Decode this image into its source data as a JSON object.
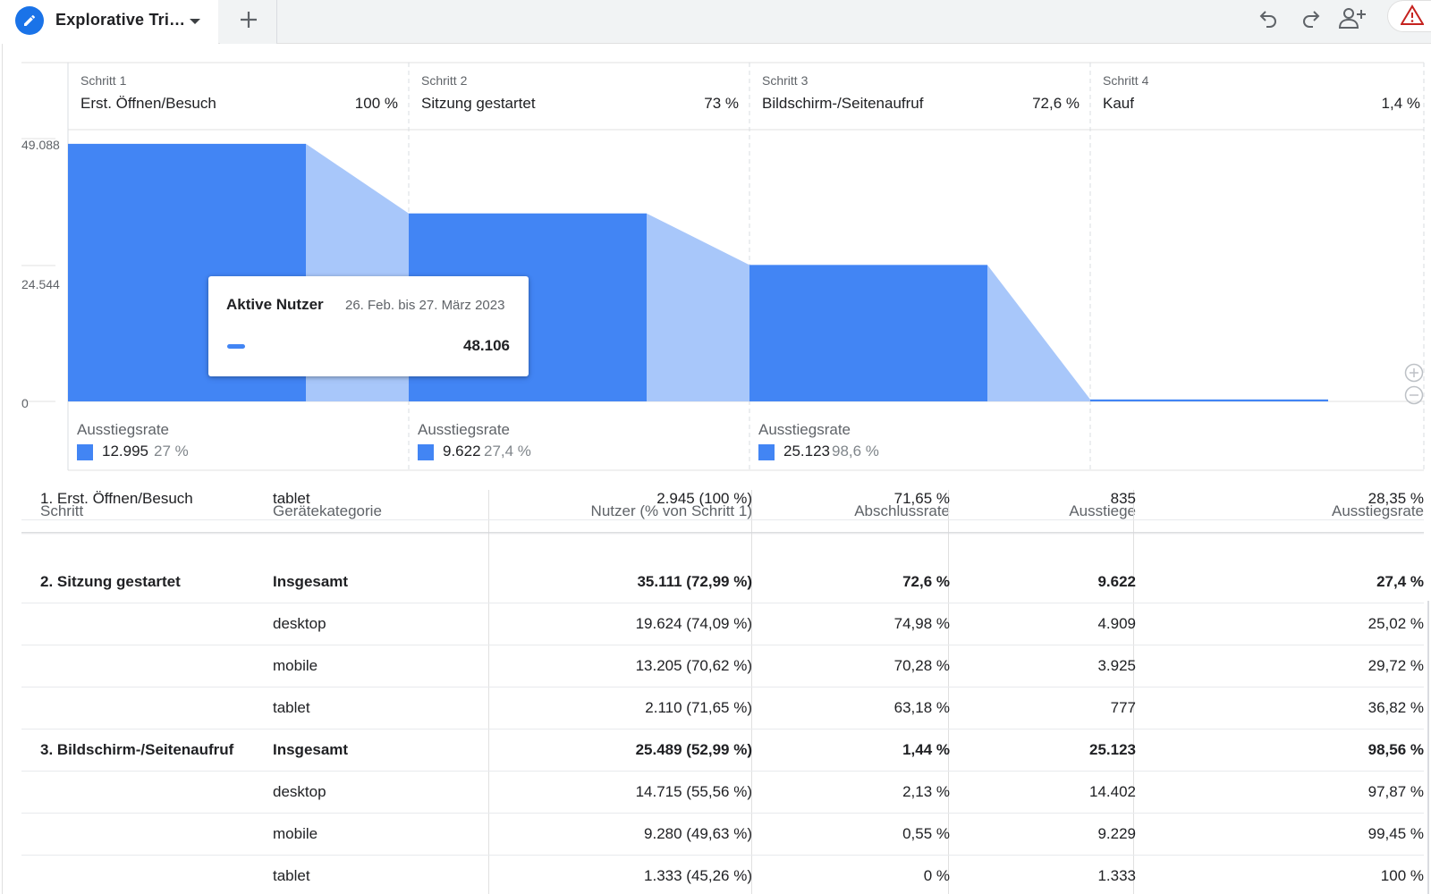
{
  "header": {
    "tab_title": "Explorative Tri…",
    "icons": [
      "edit-icon",
      "caret-down-icon",
      "plus-icon",
      "undo-icon",
      "redo-icon",
      "add-person-icon",
      "warning-icon"
    ]
  },
  "funnel": {
    "steps": [
      {
        "label": "Schritt 1",
        "name": "Erst. Öffnen/Besuch",
        "pct": "100 %",
        "users": 48106,
        "dropout_value": "12.995",
        "dropout_pct": "27 %"
      },
      {
        "label": "Schritt 2",
        "name": "Sitzung gestartet",
        "pct": "73 %",
        "users": 35111,
        "dropout_value": "9.622",
        "dropout_pct": "27,4 %"
      },
      {
        "label": "Schritt 3",
        "name": "Bildschirm-/Seitenaufruf",
        "pct": "72,6 %",
        "users": 25489,
        "dropout_value": "25.123",
        "dropout_pct": "98,6 %"
      },
      {
        "label": "Schritt 4",
        "name": "Kauf",
        "pct": "1,4 %",
        "users": 366
      }
    ],
    "y_ticks": [
      "49.088",
      "24.544",
      "0"
    ],
    "y_max": 49088,
    "dropout_label": "Ausstiegsrate",
    "colors": {
      "bar": "#4285f4",
      "flow": "#a8c7fa"
    }
  },
  "chart_data": {
    "type": "bar",
    "categories": [
      "Erst. Öffnen/Besuch",
      "Sitzung gestartet",
      "Bildschirm-/Seitenaufruf",
      "Kauf"
    ],
    "values": [
      48106,
      35111,
      25489,
      366
    ],
    "ylim": [
      0,
      49088
    ]
  },
  "tooltip": {
    "title": "Aktive Nutzer",
    "date": "26. Feb. bis 27. März 2023",
    "value": "48.106"
  },
  "table": {
    "headers": [
      "Schritt",
      "Gerätekategorie",
      "Nutzer (% von Schritt 1)",
      "Abschlussrate",
      "Ausstiege",
      "Ausstiegsrate"
    ],
    "rows": [
      {
        "step": "1. Erst. Öffnen/Besuch",
        "device": "tablet",
        "users": "2.945 (100 %)",
        "completion": "71,65 %",
        "exits": "835",
        "exit_rate": "28,35 %",
        "bold": false
      },
      {
        "step": "2. Sitzung gestartet",
        "device": "Insgesamt",
        "users": "35.111 (72,99 %)",
        "completion": "72,6 %",
        "exits": "9.622",
        "exit_rate": "27,4 %",
        "bold": true
      },
      {
        "step": "",
        "device": "desktop",
        "users": "19.624 (74,09 %)",
        "completion": "74,98 %",
        "exits": "4.909",
        "exit_rate": "25,02 %",
        "bold": false
      },
      {
        "step": "",
        "device": "mobile",
        "users": "13.205 (70,62 %)",
        "completion": "70,28 %",
        "exits": "3.925",
        "exit_rate": "29,72 %",
        "bold": false
      },
      {
        "step": "",
        "device": "tablet",
        "users": "2.110 (71,65 %)",
        "completion": "63,18 %",
        "exits": "777",
        "exit_rate": "36,82 %",
        "bold": false
      },
      {
        "step": "3. Bildschirm-/Seitenaufruf",
        "device": "Insgesamt",
        "users": "25.489 (52,99 %)",
        "completion": "1,44 %",
        "exits": "25.123",
        "exit_rate": "98,56 %",
        "bold": true
      },
      {
        "step": "",
        "device": "desktop",
        "users": "14.715 (55,56 %)",
        "completion": "2,13 %",
        "exits": "14.402",
        "exit_rate": "97,87 %",
        "bold": false
      },
      {
        "step": "",
        "device": "mobile",
        "users": "9.280 (49,63 %)",
        "completion": "0,55 %",
        "exits": "9.229",
        "exit_rate": "99,45 %",
        "bold": false
      },
      {
        "step": "",
        "device": "tablet",
        "users": "1.333 (45,26 %)",
        "completion": "0 %",
        "exits": "1.333",
        "exit_rate": "100 %",
        "bold": false
      }
    ]
  }
}
